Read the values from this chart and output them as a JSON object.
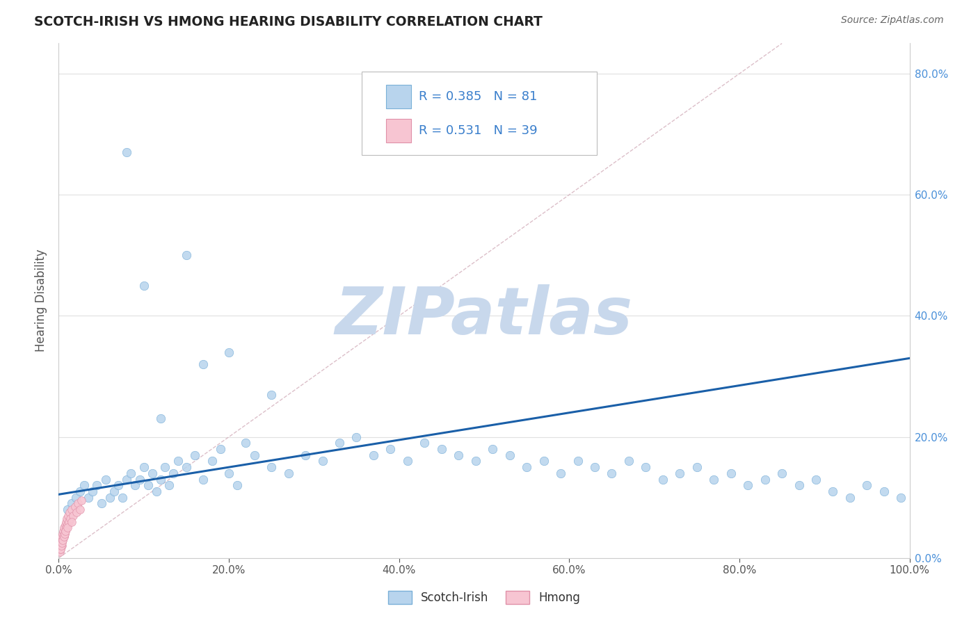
{
  "title": "SCOTCH-IRISH VS HMONG HEARING DISABILITY CORRELATION CHART",
  "source": "Source: ZipAtlas.com",
  "ylabel_label": "Hearing Disability",
  "legend_scotch_irish": {
    "R": 0.385,
    "N": 81,
    "color": "#b8d4ed",
    "edge_color": "#7ab0d8",
    "line_color": "#1a5fa8"
  },
  "legend_hmong": {
    "R": 0.531,
    "N": 39,
    "color": "#f7c5d2",
    "edge_color": "#e090a8"
  },
  "watermark": "ZIPatlas",
  "watermark_color": "#c8d8ec",
  "background_color": "#ffffff",
  "scotch_irish_x": [
    1.0,
    1.5,
    2.0,
    2.5,
    3.0,
    3.5,
    4.0,
    4.5,
    5.0,
    5.5,
    6.0,
    6.5,
    7.0,
    7.5,
    8.0,
    8.5,
    9.0,
    9.5,
    10.0,
    10.5,
    11.0,
    11.5,
    12.0,
    12.5,
    13.0,
    13.5,
    14.0,
    15.0,
    16.0,
    17.0,
    18.0,
    19.0,
    20.0,
    21.0,
    22.0,
    23.0,
    25.0,
    27.0,
    29.0,
    31.0,
    33.0,
    35.0,
    37.0,
    39.0,
    41.0,
    43.0,
    45.0,
    47.0,
    49.0,
    51.0,
    53.0,
    55.0,
    57.0,
    59.0,
    61.0,
    63.0,
    65.0,
    67.0,
    69.0,
    71.0,
    73.0,
    75.0,
    77.0,
    79.0,
    81.0,
    83.0,
    85.0,
    87.0,
    89.0,
    91.0,
    93.0,
    95.0,
    97.0,
    99.0,
    17.0,
    20.0,
    10.0,
    25.0,
    15.0,
    8.0,
    12.0
  ],
  "scotch_irish_y": [
    8.0,
    9.0,
    10.0,
    11.0,
    12.0,
    10.0,
    11.0,
    12.0,
    9.0,
    13.0,
    10.0,
    11.0,
    12.0,
    10.0,
    13.0,
    14.0,
    12.0,
    13.0,
    15.0,
    12.0,
    14.0,
    11.0,
    13.0,
    15.0,
    12.0,
    14.0,
    16.0,
    15.0,
    17.0,
    13.0,
    16.0,
    18.0,
    14.0,
    12.0,
    19.0,
    17.0,
    15.0,
    14.0,
    17.0,
    16.0,
    19.0,
    20.0,
    17.0,
    18.0,
    16.0,
    19.0,
    18.0,
    17.0,
    16.0,
    18.0,
    17.0,
    15.0,
    16.0,
    14.0,
    16.0,
    15.0,
    14.0,
    16.0,
    15.0,
    13.0,
    14.0,
    15.0,
    13.0,
    14.0,
    12.0,
    13.0,
    14.0,
    12.0,
    13.0,
    11.0,
    10.0,
    12.0,
    11.0,
    10.0,
    32.0,
    34.0,
    45.0,
    27.0,
    50.0,
    67.0,
    23.0
  ],
  "hmong_x": [
    0.1,
    0.15,
    0.2,
    0.25,
    0.3,
    0.35,
    0.4,
    0.45,
    0.5,
    0.55,
    0.6,
    0.65,
    0.7,
    0.75,
    0.8,
    0.85,
    0.9,
    0.95,
    1.0,
    1.1,
    1.2,
    1.3,
    1.4,
    1.5,
    1.7,
    1.9,
    2.1,
    2.3,
    2.5,
    2.7,
    0.2,
    0.3,
    0.4,
    0.5,
    0.6,
    0.7,
    0.8,
    1.0,
    1.5
  ],
  "hmong_y": [
    1.0,
    2.0,
    3.0,
    1.5,
    2.5,
    3.5,
    2.0,
    4.0,
    3.0,
    4.5,
    3.5,
    5.0,
    4.0,
    5.5,
    4.5,
    6.0,
    5.0,
    6.5,
    5.5,
    7.0,
    6.0,
    7.5,
    6.5,
    8.0,
    7.0,
    8.5,
    7.5,
    9.0,
    8.0,
    9.5,
    1.5,
    2.0,
    2.5,
    3.0,
    3.5,
    4.0,
    4.5,
    5.0,
    6.0
  ],
  "si_line_x": [
    0,
    100
  ],
  "si_line_y": [
    10.5,
    33.0
  ],
  "ref_line_x": [
    0,
    85
  ],
  "ref_line_y": [
    0,
    85
  ],
  "xlim": [
    0,
    100
  ],
  "ylim": [
    0,
    85
  ],
  "xtick_vals": [
    0,
    20,
    40,
    60,
    80,
    100
  ],
  "ytick_vals": [
    0,
    20,
    40,
    60,
    80
  ],
  "figsize": [
    14.06,
    8.92
  ],
  "dpi": 100
}
